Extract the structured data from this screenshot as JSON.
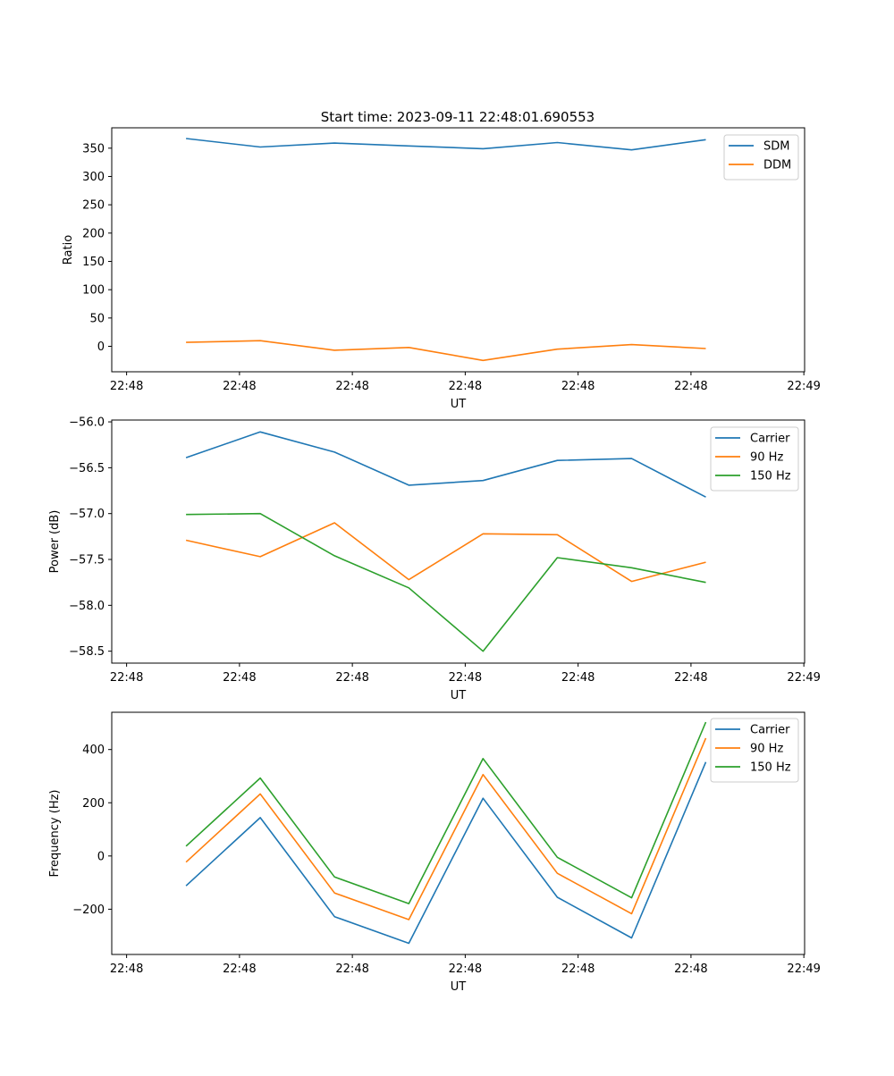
{
  "figure": {
    "title": "Start time: 2023-09-11 22:48:01.690553"
  },
  "chart_data": [
    {
      "type": "line",
      "title": "Start time: 2023-09-11 22:48:01.690553",
      "xlabel": "UT",
      "ylabel": "Ratio",
      "x": [
        1,
        2,
        3,
        4,
        5,
        6,
        7,
        8
      ],
      "x_tick_positions": [
        0.2,
        1.72,
        3.24,
        4.76,
        6.28,
        7.8,
        9.32
      ],
      "x_tick_labels": [
        "22:48",
        "22:48",
        "22:48",
        "22:48",
        "22:48",
        "22:48",
        "22:49"
      ],
      "xlim": [
        0.0,
        9.33
      ],
      "ylim": [
        -45,
        386
      ],
      "y_ticks": [
        0,
        50,
        100,
        150,
        200,
        250,
        300,
        350
      ],
      "y_tick_labels": [
        "0",
        "50",
        "100",
        "150",
        "200",
        "250",
        "300",
        "350"
      ],
      "legend_position": "top-right",
      "grid": false,
      "series": [
        {
          "name": "SDM",
          "color": "#1f77b4",
          "values": [
            367,
            352,
            359,
            354,
            349,
            360,
            347,
            365
          ]
        },
        {
          "name": "DDM",
          "color": "#ff7f0e",
          "values": [
            7,
            10,
            -7,
            -2,
            -25,
            -5,
            3,
            -4
          ]
        }
      ]
    },
    {
      "type": "line",
      "title": "",
      "xlabel": "UT",
      "ylabel": "Power (dB)",
      "x": [
        1,
        2,
        3,
        4,
        5,
        6,
        7,
        8
      ],
      "x_tick_positions": [
        0.2,
        1.72,
        3.24,
        4.76,
        6.28,
        7.8,
        9.32
      ],
      "x_tick_labels": [
        "22:48",
        "22:48",
        "22:48",
        "22:48",
        "22:48",
        "22:48",
        "22:49"
      ],
      "xlim": [
        0.0,
        9.33
      ],
      "ylim": [
        -58.63,
        -55.98
      ],
      "y_ticks": [
        -58.5,
        -58.0,
        -57.5,
        -57.0,
        -56.5,
        -56.0
      ],
      "y_tick_labels": [
        "−58.5",
        "−58.0",
        "−57.5",
        "−57.0",
        "−56.5",
        "−56.0"
      ],
      "legend_position": "top-right",
      "grid": false,
      "series": [
        {
          "name": "Carrier",
          "color": "#1f77b4",
          "values": [
            -56.39,
            -56.11,
            -56.33,
            -56.69,
            -56.64,
            -56.42,
            -56.4,
            -56.82
          ]
        },
        {
          "name": "90 Hz",
          "color": "#ff7f0e",
          "values": [
            -57.29,
            -57.47,
            -57.1,
            -57.72,
            -57.22,
            -57.23,
            -57.74,
            -57.53
          ]
        },
        {
          "name": "150 Hz",
          "color": "#2ca02c",
          "values": [
            -57.01,
            -57.0,
            -57.46,
            -57.81,
            -58.5,
            -57.48,
            -57.59,
            -57.75
          ]
        }
      ]
    },
    {
      "type": "line",
      "title": "",
      "xlabel": "UT",
      "ylabel": "Frequency (Hz)",
      "x": [
        1,
        2,
        3,
        4,
        5,
        6,
        7,
        8
      ],
      "x_tick_positions": [
        0.2,
        1.72,
        3.24,
        4.76,
        6.28,
        7.8,
        9.32
      ],
      "x_tick_labels": [
        "22:48",
        "22:48",
        "22:48",
        "22:48",
        "22:48",
        "22:48",
        "22:49"
      ],
      "xlim": [
        0.0,
        9.33
      ],
      "ylim": [
        -370,
        540
      ],
      "y_ticks": [
        -200,
        0,
        200,
        400
      ],
      "y_tick_labels": [
        "−200",
        "0",
        "200",
        "400"
      ],
      "legend_position": "top-right",
      "grid": false,
      "series": [
        {
          "name": "Carrier",
          "color": "#1f77b4",
          "values": [
            -112,
            144,
            -228,
            -328,
            217,
            -155,
            -308,
            353
          ]
        },
        {
          "name": "90 Hz",
          "color": "#ff7f0e",
          "values": [
            -23,
            233,
            -139,
            -239,
            306,
            -65,
            -217,
            443
          ]
        },
        {
          "name": "150 Hz",
          "color": "#2ca02c",
          "values": [
            37,
            293,
            -79,
            -179,
            366,
            -5,
            -157,
            503
          ]
        }
      ]
    }
  ]
}
